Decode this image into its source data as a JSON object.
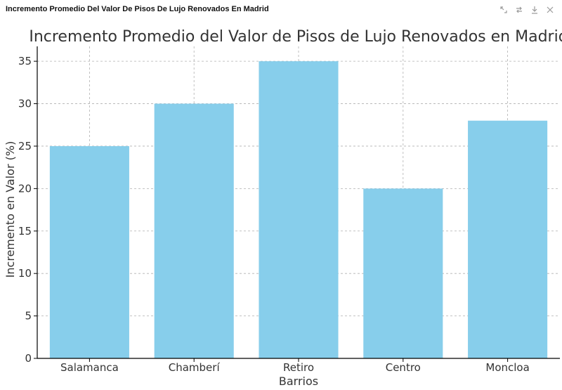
{
  "window": {
    "title": "Incremento Promedio Del Valor De Pisos De Lujo Renovados En Madrid",
    "toolbar": [
      {
        "icon": "expand-icon"
      },
      {
        "icon": "swap-icon"
      },
      {
        "icon": "download-icon"
      },
      {
        "icon": "close-icon"
      }
    ]
  },
  "colors": {
    "bar": "#87CEEB",
    "grid": "#b0b0b0",
    "axis": "#000000",
    "text": "#333333",
    "toolbar_icon": "#9a9a9a"
  },
  "chart_data": {
    "type": "bar",
    "title": "Incremento Promedio del Valor de Pisos de Lujo Renovados en Madrid",
    "xlabel": "Barrios",
    "ylabel": "Incremento en Valor (%)",
    "categories": [
      "Salamanca",
      "Chamberí",
      "Retiro",
      "Centro",
      "Moncloa"
    ],
    "values": [
      25,
      30,
      35,
      20,
      28
    ],
    "ylim": [
      0,
      36.75
    ],
    "yticks": [
      0,
      5,
      10,
      15,
      20,
      25,
      30,
      35
    ],
    "grid": true,
    "grid_style": "dashed"
  }
}
